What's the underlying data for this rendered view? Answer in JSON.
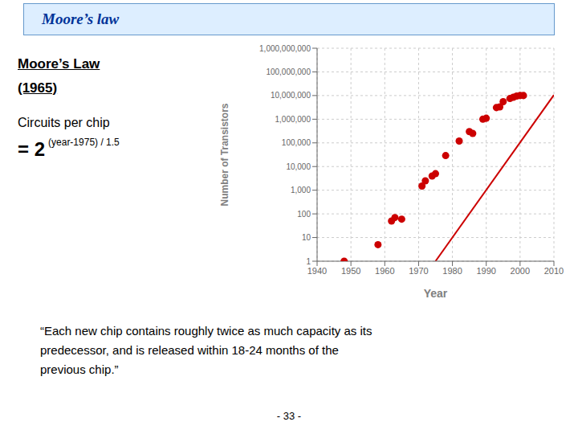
{
  "chart_data": {
    "type": "scatter",
    "title": "Moore’s law",
    "x_label": "Year",
    "y_label": "Number of Transistors",
    "log": "y",
    "grid": true,
    "xlim": [
      1940,
      2010
    ],
    "xticks": [
      1940,
      1950,
      1960,
      1970,
      1980,
      1990,
      2000,
      2010
    ],
    "ylim": [
      1,
      1000000000
    ],
    "yticks": [
      1,
      10,
      100,
      {
        "value": 1000,
        "label": "1,000"
      },
      {
        "value": 10000,
        "label": "10,000"
      },
      {
        "value": 100000,
        "label": "100,000"
      },
      {
        "value": 1000000,
        "label": "1,000,000"
      },
      {
        "value": 10000000,
        "label": "10,000,000"
      },
      {
        "value": 100000000,
        "label": "100,000,000"
      },
      {
        "value": 1000000000,
        "label": "1,000,000,000"
      }
    ],
    "series": [
      {
        "type": "scatter",
        "color": "#cc0000",
        "x": [
          1948,
          1958,
          1962,
          1963,
          1965,
          1971,
          1972,
          1974,
          1975,
          1978,
          1982,
          1985,
          1986,
          1989,
          1990,
          1993,
          1994,
          1995,
          1997,
          1998,
          1999,
          2000,
          2001
        ],
        "values": [
          1,
          5,
          50,
          70,
          60,
          1500,
          2500,
          4000,
          5000,
          29000,
          120000,
          300000,
          250000,
          1000000,
          1100000,
          3100000,
          3300000,
          5500000,
          7500000,
          8500000,
          9500000,
          10000000,
          10000000
        ]
      },
      {
        "type": "line",
        "color": "#cc0000",
        "x": [
          1975,
          2010
        ],
        "values": [
          1,
          10568983.8
        ]
      }
    ],
    "annotations": [
      "Moore’s Law",
      "(1965)",
      "Circuits per chip",
      "= 2",
      "(year-1975) / 1.5",
      "“Each new chip contains roughly twice as much capacity as its\npredecessor, and is released within 18-24 months of the\nprevious chip.”",
      "- 33 -"
    ]
  }
}
